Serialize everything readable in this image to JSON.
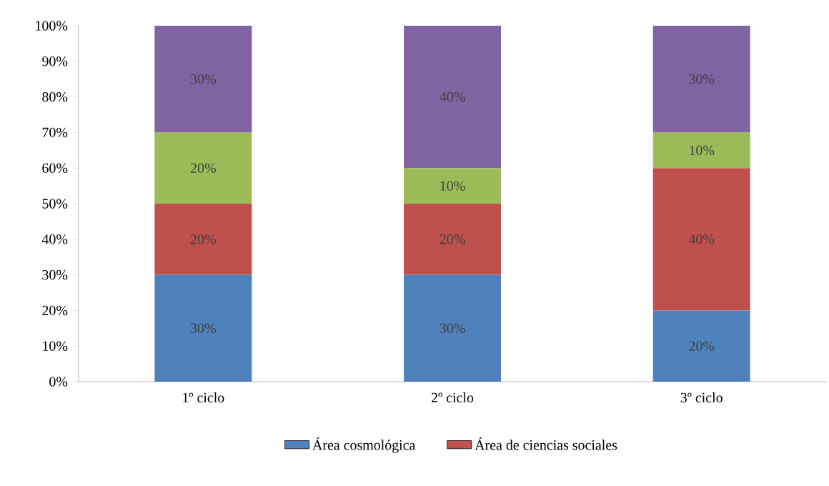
{
  "chart_data": {
    "type": "bar",
    "stacked": true,
    "categories": [
      "1º ciclo",
      "2º ciclo",
      "3º ciclo"
    ],
    "series": [
      {
        "name": "Área cosmológica",
        "color": "#4f81bd",
        "values": [
          30,
          30,
          20
        ],
        "value_labels": [
          "30%",
          "30%",
          "20%"
        ]
      },
      {
        "name": "Área de ciencias sociales",
        "color": "#c0504d",
        "values": [
          20,
          20,
          40
        ],
        "value_labels": [
          "20%",
          "20%",
          "40%"
        ]
      },
      {
        "color": "#9bbb59",
        "values": [
          20,
          10,
          10
        ],
        "value_labels": [
          "20%",
          "10%",
          "10%"
        ]
      },
      {
        "color": "#8064a2",
        "values": [
          30,
          40,
          30
        ],
        "value_labels": [
          "30%",
          "40%",
          "30%"
        ]
      }
    ],
    "ylim": [
      0,
      100
    ],
    "yticks": [
      {
        "value": 0,
        "label": "0%"
      },
      {
        "value": 10,
        "label": "10%"
      },
      {
        "value": 20,
        "label": "20%"
      },
      {
        "value": 30,
        "label": "30%"
      },
      {
        "value": 40,
        "label": "40%"
      },
      {
        "value": 50,
        "label": "50%"
      },
      {
        "value": 60,
        "label": "60%"
      },
      {
        "value": 70,
        "label": "70%"
      },
      {
        "value": 80,
        "label": "80%"
      },
      {
        "value": 90,
        "label": "90%"
      },
      {
        "value": 100,
        "label": "100%"
      }
    ],
    "legend": "bottom"
  }
}
